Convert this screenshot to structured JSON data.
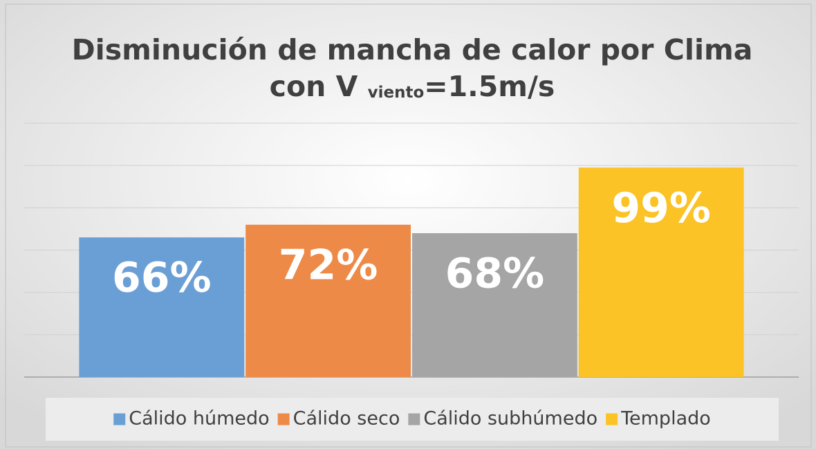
{
  "chart_data": {
    "type": "bar",
    "title": {
      "line1": "Disminución de mancha de calor por Clima",
      "line2_start": "con V",
      "line2_subscript": "viento",
      "line2_end": "=1.5m/s"
    },
    "categories": [
      null
    ],
    "series": [
      {
        "name": "Cálido húmedo",
        "color": "#6a9fd6",
        "values": [
          66
        ],
        "value_labels": [
          "66%"
        ]
      },
      {
        "name": "Cálido seco",
        "color": "#ee8a48",
        "values": [
          72
        ],
        "value_labels": [
          "72%"
        ]
      },
      {
        "name": "Cálido subhúmedo",
        "color": "#a5a5a5",
        "values": [
          68
        ],
        "value_labels": [
          "68%"
        ]
      },
      {
        "name": "Templado",
        "color": "#fbc325",
        "values": [
          99
        ],
        "value_labels": [
          "99%"
        ]
      }
    ],
    "ylim": [
      0,
      120
    ],
    "yticks": [
      0,
      20,
      40,
      60,
      80,
      100,
      120
    ],
    "grid": true,
    "legend": "bottom"
  }
}
